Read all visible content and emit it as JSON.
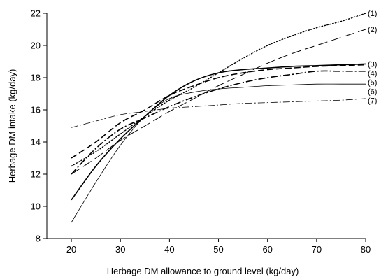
{
  "chart_data": {
    "type": "line",
    "title": "",
    "xlabel": "Herbage DM allowance to ground level (kg/day)",
    "ylabel": "Herbage DM intake (kg/day)",
    "xlim": [
      15,
      80
    ],
    "ylim": [
      8,
      22
    ],
    "xticks": [
      20,
      30,
      40,
      50,
      60,
      70,
      80
    ],
    "yticks": [
      8,
      10,
      12,
      14,
      16,
      18,
      20,
      22
    ],
    "grid": false,
    "legend": "none",
    "series": [
      {
        "name": "(1)",
        "style": "dotted",
        "width": 1.4,
        "color": "#000000",
        "x": [
          20,
          25,
          30,
          35,
          40,
          45,
          50,
          55,
          60,
          65,
          70,
          75,
          80
        ],
        "y": [
          12.5,
          13.4,
          14.5,
          15.6,
          16.6,
          17.4,
          18.3,
          19.2,
          20.0,
          20.6,
          21.1,
          21.5,
          22.0
        ]
      },
      {
        "name": "(2)",
        "style": "longdash",
        "width": 1.0,
        "color": "#000000",
        "x": [
          20,
          25,
          30,
          35,
          40,
          45,
          50,
          55,
          60,
          65,
          70,
          75,
          80
        ],
        "y": [
          12.0,
          13.0,
          14.1,
          15.0,
          15.9,
          16.7,
          17.5,
          18.2,
          18.9,
          19.5,
          20.0,
          20.5,
          21.0
        ]
      },
      {
        "name": "(3)",
        "style": "solid",
        "width": 1.6,
        "color": "#000000",
        "x": [
          20,
          25,
          30,
          35,
          40,
          45,
          50,
          55,
          60,
          65,
          70,
          75,
          80
        ],
        "y": [
          10.4,
          12.5,
          14.2,
          15.6,
          16.9,
          17.8,
          18.3,
          18.5,
          18.6,
          18.7,
          18.75,
          18.8,
          18.85
        ]
      },
      {
        "name": "(4)",
        "style": "dash",
        "width": 1.6,
        "color": "#000000",
        "x": [
          20,
          25,
          30,
          35,
          40,
          45,
          50,
          55,
          60,
          65,
          70,
          75,
          80
        ],
        "y": [
          13.0,
          14.0,
          15.2,
          16.0,
          16.9,
          17.5,
          18.0,
          18.3,
          18.5,
          18.6,
          18.7,
          18.75,
          18.8
        ]
      },
      {
        "name": "(5)",
        "style": "dashdot",
        "width": 1.6,
        "color": "#000000",
        "x": [
          20,
          25,
          30,
          35,
          40,
          45,
          50,
          55,
          60,
          65,
          70,
          75,
          80
        ],
        "y": [
          12.0,
          13.6,
          14.8,
          15.5,
          16.2,
          16.8,
          17.3,
          17.7,
          18.0,
          18.2,
          18.4,
          18.4,
          18.4
        ]
      },
      {
        "name": "(6)",
        "style": "solid",
        "width": 0.8,
        "color": "#000000",
        "x": [
          20,
          25,
          30,
          35,
          40,
          45,
          50,
          55,
          60,
          65,
          70,
          75,
          80
        ],
        "y": [
          9.0,
          11.5,
          13.8,
          15.6,
          16.7,
          17.1,
          17.3,
          17.4,
          17.5,
          17.55,
          17.6,
          17.6,
          17.6
        ]
      },
      {
        "name": "(7)",
        "style": "dashdot",
        "width": 0.8,
        "color": "#000000",
        "x": [
          20,
          25,
          30,
          35,
          40,
          45,
          50,
          55,
          60,
          65,
          70,
          75,
          80
        ],
        "y": [
          14.9,
          15.3,
          15.7,
          15.9,
          16.1,
          16.2,
          16.3,
          16.4,
          16.45,
          16.5,
          16.55,
          16.6,
          16.7
        ]
      }
    ]
  }
}
